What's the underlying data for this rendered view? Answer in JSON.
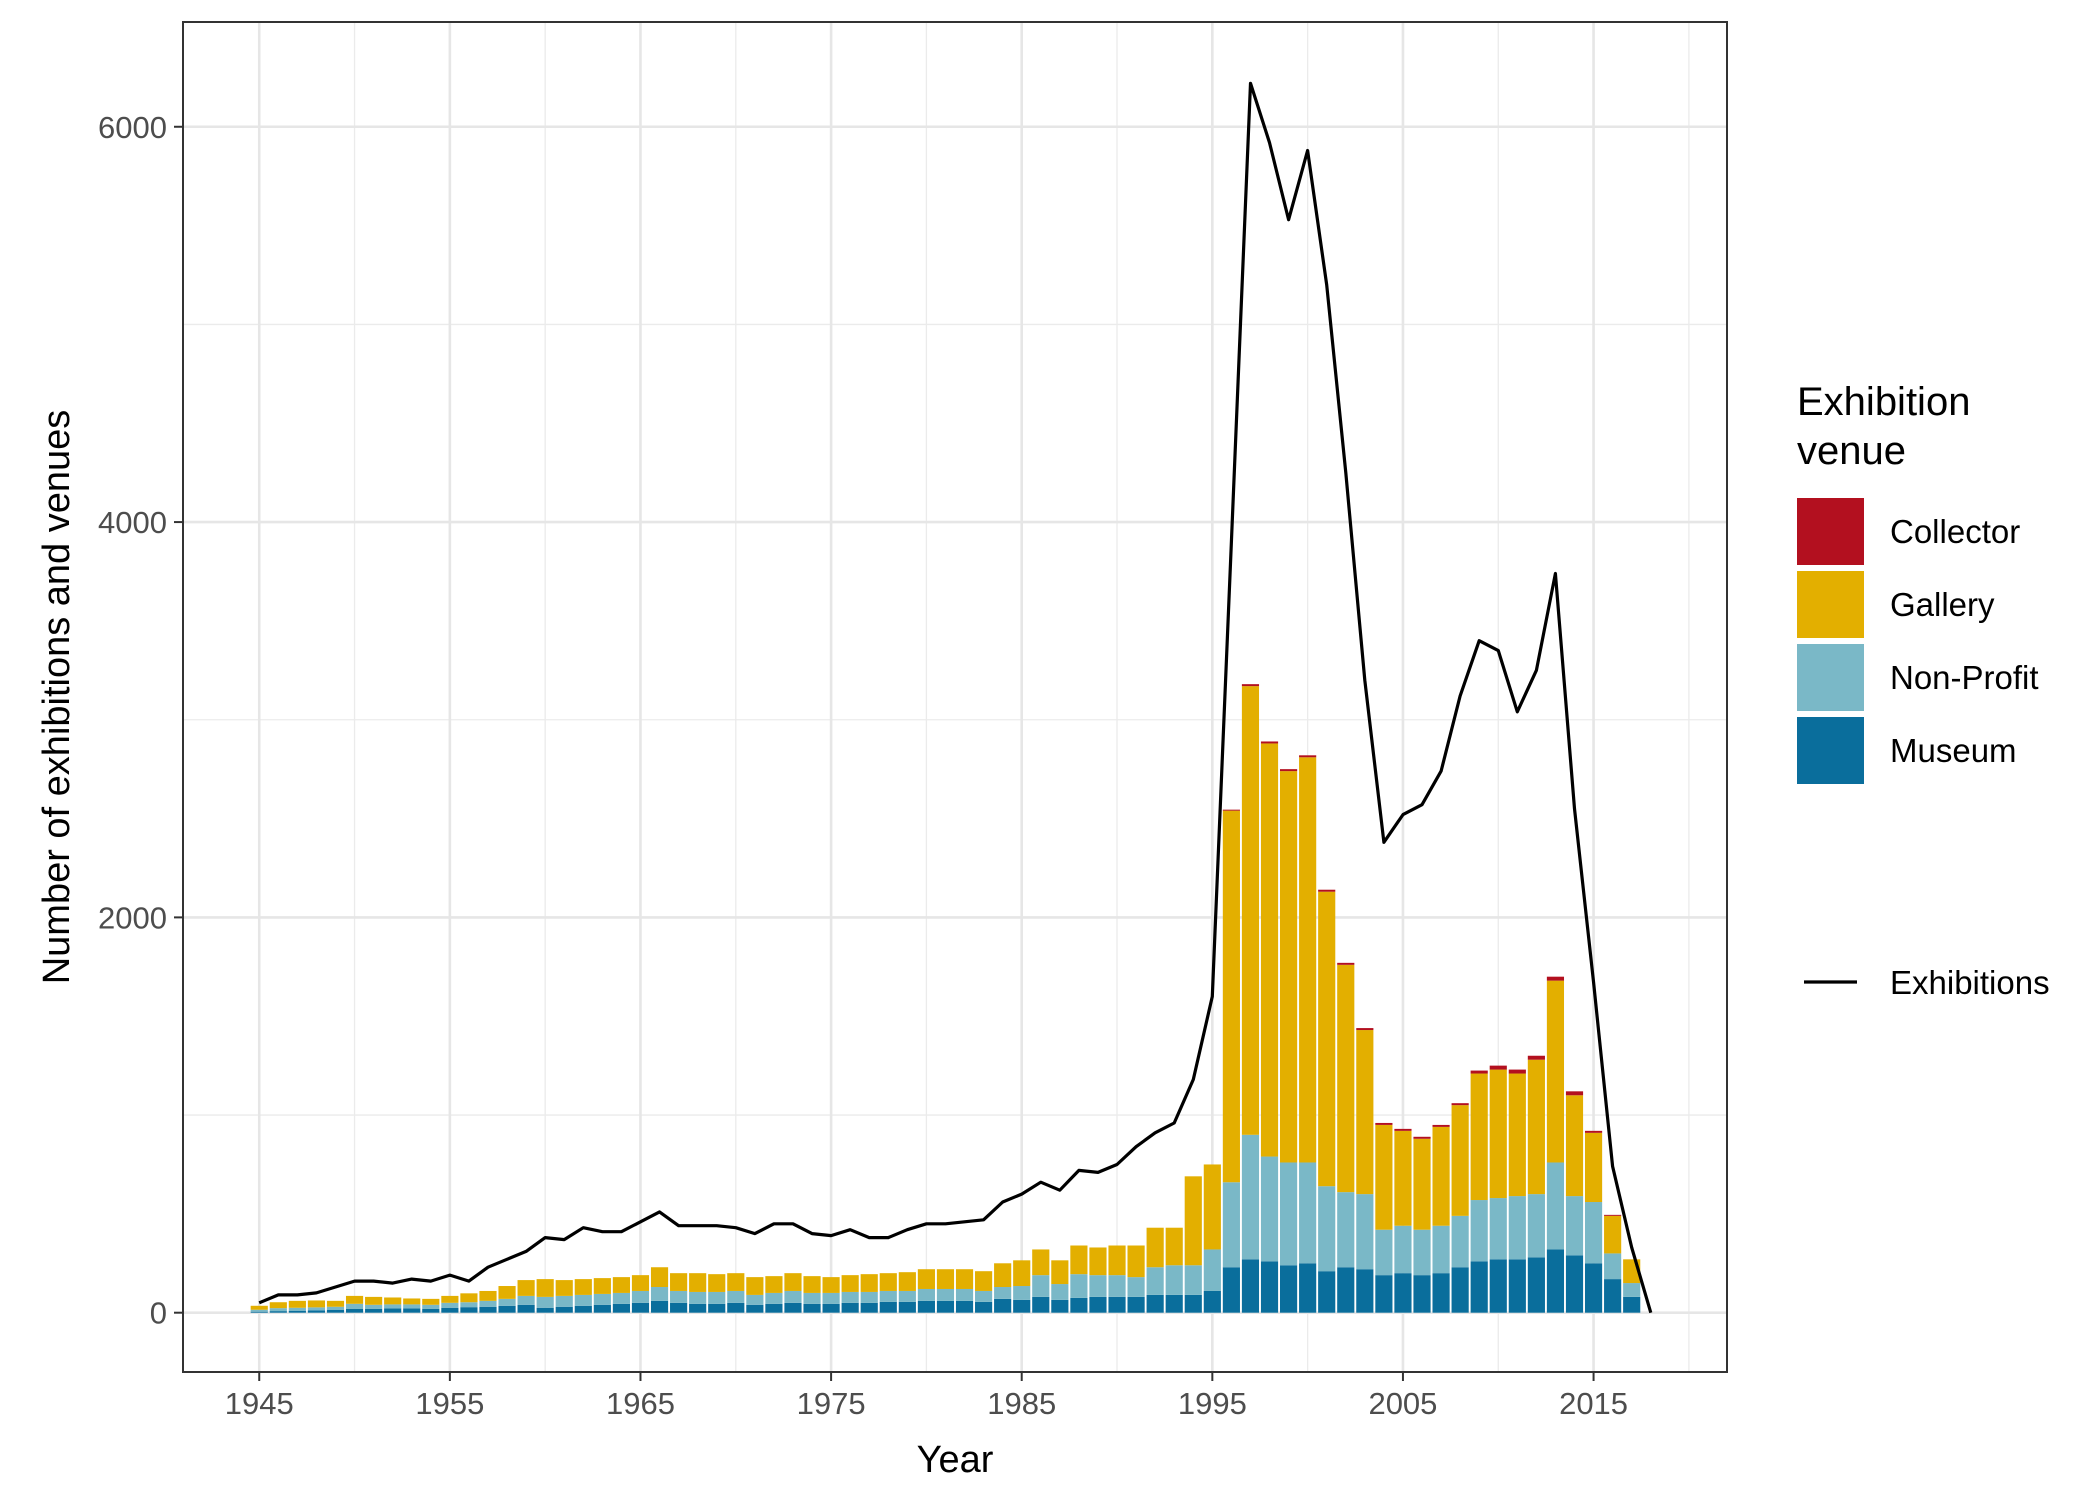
{
  "chart_data": {
    "type": "bar",
    "stacked": true,
    "xlabel": "Year",
    "ylabel": "Number of exhibitions and venues",
    "xlim": [
      1941,
      2022
    ],
    "ylim": [
      -300,
      6530
    ],
    "x_ticks": [
      1945,
      1955,
      1965,
      1975,
      1985,
      1995,
      2005,
      2015
    ],
    "y_ticks": [
      0,
      2000,
      4000,
      6000
    ],
    "grid": true,
    "legend_position": "right",
    "legend": {
      "title_lines": [
        "Exhibition",
        "venue"
      ],
      "fill_entries": [
        "Collector",
        "Gallery",
        "Non-Profit",
        "Museum"
      ],
      "line_entry": "Exhibitions"
    },
    "colors": {
      "Museum": "#0a6e9c",
      "Non-Profit": "#7ab8c7",
      "Gallery": "#e3af00",
      "Collector": "#b3101f",
      "Exhibitions": "#000000"
    },
    "x": [
      1945,
      1946,
      1947,
      1948,
      1949,
      1950,
      1951,
      1952,
      1953,
      1954,
      1955,
      1956,
      1957,
      1958,
      1959,
      1960,
      1961,
      1962,
      1963,
      1964,
      1965,
      1966,
      1967,
      1968,
      1969,
      1970,
      1971,
      1972,
      1973,
      1974,
      1975,
      1976,
      1977,
      1978,
      1979,
      1980,
      1981,
      1982,
      1983,
      1984,
      1985,
      1986,
      1987,
      1988,
      1989,
      1990,
      1991,
      1992,
      1993,
      1994,
      1995,
      1996,
      1997,
      1998,
      1999,
      2000,
      2001,
      2002,
      2003,
      2004,
      2005,
      2006,
      2007,
      2008,
      2009,
      2010,
      2011,
      2012,
      2013,
      2014,
      2015,
      2016,
      2017
    ],
    "series": [
      {
        "name": "Museum",
        "values": [
          5,
          8,
          10,
          12,
          15,
          20,
          20,
          22,
          22,
          20,
          25,
          28,
          30,
          35,
          40,
          25,
          30,
          35,
          40,
          45,
          50,
          60,
          50,
          45,
          45,
          50,
          40,
          45,
          50,
          45,
          45,
          50,
          50,
          55,
          55,
          60,
          60,
          60,
          55,
          70,
          65,
          80,
          65,
          75,
          80,
          80,
          80,
          90,
          90,
          90,
          110,
          230,
          270,
          260,
          240,
          250,
          210,
          230,
          220,
          190,
          200,
          190,
          200,
          230,
          260,
          270,
          270,
          280,
          320,
          290,
          250,
          170,
          80
        ]
      },
      {
        "name": "Non-Profit",
        "values": [
          10,
          15,
          15,
          15,
          15,
          25,
          20,
          20,
          20,
          20,
          25,
          25,
          30,
          35,
          45,
          55,
          55,
          55,
          55,
          55,
          60,
          70,
          60,
          60,
          60,
          60,
          50,
          55,
          60,
          55,
          55,
          55,
          55,
          55,
          55,
          60,
          60,
          60,
          55,
          60,
          70,
          110,
          80,
          120,
          110,
          110,
          100,
          140,
          150,
          150,
          210,
          430,
          630,
          530,
          520,
          510,
          430,
          380,
          380,
          230,
          240,
          230,
          240,
          260,
          310,
          310,
          320,
          320,
          440,
          300,
          310,
          130,
          70
        ]
      },
      {
        "name": "Gallery",
        "values": [
          20,
          30,
          35,
          35,
          30,
          40,
          40,
          35,
          30,
          30,
          35,
          45,
          50,
          65,
          80,
          90,
          80,
          80,
          80,
          80,
          80,
          100,
          90,
          95,
          90,
          90,
          90,
          85,
          90,
          85,
          80,
          85,
          90,
          90,
          95,
          100,
          100,
          100,
          100,
          120,
          130,
          130,
          120,
          145,
          140,
          150,
          160,
          200,
          190,
          450,
          430,
          1880,
          2270,
          2090,
          1980,
          2050,
          1490,
          1150,
          830,
          530,
          480,
          460,
          500,
          560,
          640,
          650,
          620,
          680,
          920,
          510,
          350,
          190,
          120
        ]
      },
      {
        "name": "Collector",
        "values": [
          0,
          0,
          0,
          0,
          0,
          0,
          0,
          0,
          0,
          0,
          0,
          0,
          0,
          0,
          0,
          0,
          0,
          0,
          0,
          0,
          0,
          0,
          0,
          0,
          0,
          0,
          0,
          0,
          0,
          0,
          0,
          0,
          0,
          0,
          0,
          0,
          0,
          0,
          0,
          0,
          0,
          0,
          0,
          0,
          0,
          0,
          0,
          0,
          0,
          0,
          0,
          5,
          10,
          10,
          10,
          10,
          10,
          10,
          10,
          10,
          10,
          10,
          10,
          10,
          15,
          20,
          20,
          20,
          20,
          20,
          10,
          5,
          0
        ]
      }
    ],
    "line": {
      "name": "Exhibitions",
      "x": [
        1945,
        1946,
        1947,
        1948,
        1949,
        1950,
        1951,
        1952,
        1953,
        1954,
        1955,
        1956,
        1957,
        1958,
        1959,
        1960,
        1961,
        1962,
        1963,
        1964,
        1965,
        1966,
        1967,
        1968,
        1969,
        1970,
        1971,
        1972,
        1973,
        1974,
        1975,
        1976,
        1977,
        1978,
        1979,
        1980,
        1981,
        1982,
        1983,
        1984,
        1985,
        1986,
        1987,
        1988,
        1989,
        1990,
        1991,
        1992,
        1993,
        1994,
        1995,
        1996,
        1997,
        1998,
        1999,
        2000,
        2001,
        2002,
        2003,
        2004,
        2005,
        2006,
        2007,
        2008,
        2009,
        2010,
        2011,
        2012,
        2013,
        2014,
        2015,
        2016,
        2017,
        2018
      ],
      "values": [
        50,
        90,
        90,
        100,
        130,
        160,
        160,
        150,
        170,
        160,
        190,
        160,
        230,
        270,
        310,
        380,
        370,
        430,
        410,
        410,
        460,
        510,
        440,
        440,
        440,
        430,
        400,
        450,
        450,
        400,
        390,
        420,
        380,
        380,
        420,
        450,
        450,
        460,
        470,
        560,
        600,
        660,
        620,
        720,
        710,
        750,
        840,
        910,
        960,
        1180,
        1600,
        3900,
        6220,
        5920,
        5530,
        5880,
        5200,
        4250,
        3200,
        2380,
        2520,
        2570,
        2740,
        3120,
        3400,
        3350,
        3040,
        3250,
        3740,
        2550,
        1670,
        740,
        330,
        0
      ]
    }
  }
}
